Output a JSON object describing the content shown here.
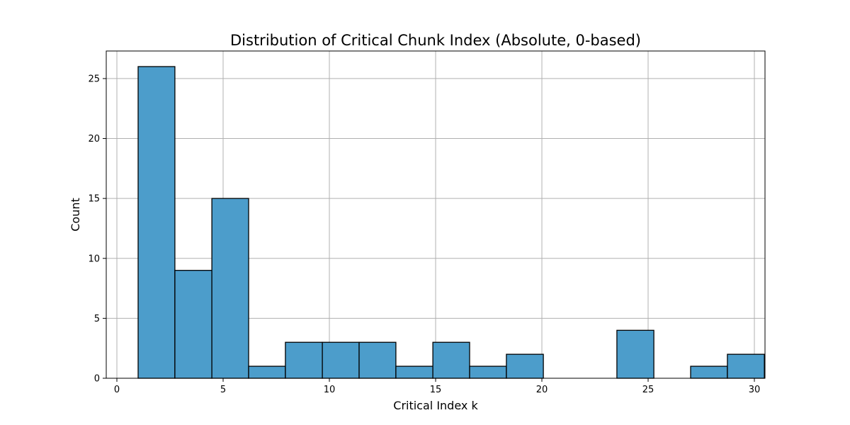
{
  "chart_data": {
    "type": "bar",
    "subtype": "histogram",
    "title": "Distribution of Critical Chunk Index (Absolute, 0-based)",
    "xlabel": "Critical Index k",
    "ylabel": "Count",
    "xlim": [
      -0.5,
      30.5
    ],
    "ylim": [
      0,
      27.3
    ],
    "xticks": [
      0,
      5,
      10,
      15,
      20,
      25,
      30
    ],
    "yticks": [
      0,
      5,
      10,
      15,
      20,
      25
    ],
    "grid": true,
    "bar_color": "#4c9dcb",
    "edge_color": "#000000",
    "bins": [
      {
        "x0": 1.0,
        "x1": 2.73,
        "count": 26
      },
      {
        "x0": 2.73,
        "x1": 4.47,
        "count": 9
      },
      {
        "x0": 4.47,
        "x1": 6.2,
        "count": 15
      },
      {
        "x0": 6.2,
        "x1": 7.93,
        "count": 1
      },
      {
        "x0": 7.93,
        "x1": 9.67,
        "count": 3
      },
      {
        "x0": 9.67,
        "x1": 11.4,
        "count": 3
      },
      {
        "x0": 11.4,
        "x1": 13.13,
        "count": 3
      },
      {
        "x0": 13.13,
        "x1": 14.87,
        "count": 1
      },
      {
        "x0": 14.87,
        "x1": 16.6,
        "count": 3
      },
      {
        "x0": 16.6,
        "x1": 18.33,
        "count": 1
      },
      {
        "x0": 18.33,
        "x1": 20.07,
        "count": 2
      },
      {
        "x0": 20.07,
        "x1": 21.8,
        "count": 0
      },
      {
        "x0": 21.8,
        "x1": 23.53,
        "count": 0
      },
      {
        "x0": 23.53,
        "x1": 25.27,
        "count": 4
      },
      {
        "x0": 25.27,
        "x1": 27.0,
        "count": 0
      },
      {
        "x0": 27.0,
        "x1": 28.73,
        "count": 1
      },
      {
        "x0": 28.73,
        "x1": 30.47,
        "count": 2
      }
    ]
  }
}
